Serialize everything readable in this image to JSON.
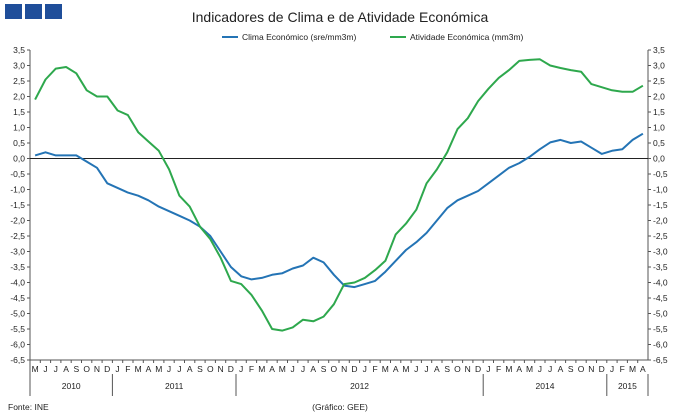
{
  "chart_data": {
    "type": "line",
    "title": "Indicadores de Clima e de Atividade Económica",
    "ylim": [
      -6.5,
      3.5
    ],
    "yticks": [
      "3,5",
      "3,0",
      "2,5",
      "2,0",
      "1,5",
      "1,0",
      "0,5",
      "0,0",
      "-0,5",
      "-1,0",
      "-1,5",
      "-2,0",
      "-2,5",
      "-3,0",
      "-3,5",
      "-4,0",
      "-4,5",
      "-5,0",
      "-5,5",
      "-6,0",
      "-6,5"
    ],
    "months": [
      "M",
      "J",
      "J",
      "A",
      "S",
      "O",
      "N",
      "D",
      "J",
      "F",
      "M",
      "A",
      "M",
      "J",
      "J",
      "A",
      "S",
      "O",
      "N",
      "D",
      "J",
      "F",
      "M",
      "A",
      "M",
      "J",
      "J",
      "A",
      "S",
      "O",
      "N",
      "D",
      "J",
      "F",
      "M",
      "A",
      "M",
      "J",
      "J",
      "A",
      "S",
      "O",
      "N",
      "D",
      "J",
      "F",
      "M",
      "A",
      "M",
      "J",
      "J",
      "A",
      "S",
      "O",
      "N",
      "D",
      "J",
      "F",
      "M",
      "A"
    ],
    "years": [
      {
        "label": "2010",
        "start": 0,
        "end": 7
      },
      {
        "label": "2011",
        "start": 8,
        "end": 19
      },
      {
        "label": "2012",
        "start": 20,
        "end": 43
      },
      {
        "label": "2014",
        "start": 44,
        "end": 55
      },
      {
        "label": "2015",
        "start": 56,
        "end": 59
      }
    ],
    "series": [
      {
        "name": "Clima Económico (sre/mm3m)",
        "color": "#2474b5",
        "values": [
          0.1,
          0.2,
          0.1,
          0.1,
          0.1,
          -0.1,
          -0.3,
          -0.8,
          -0.95,
          -1.1,
          -1.2,
          -1.35,
          -1.55,
          -1.7,
          -1.85,
          -2.0,
          -2.2,
          -2.5,
          -3.0,
          -3.5,
          -3.8,
          -3.9,
          -3.85,
          -3.75,
          -3.7,
          -3.55,
          -3.45,
          -3.2,
          -3.35,
          -3.75,
          -4.1,
          -4.15,
          -4.05,
          -3.95,
          -3.65,
          -3.3,
          -2.95,
          -2.7,
          -2.4,
          -2.0,
          -1.6,
          -1.35,
          -1.2,
          -1.05,
          -0.8,
          -0.55,
          -0.3,
          -0.15,
          0.05,
          0.3,
          0.52,
          0.6,
          0.5,
          0.55,
          0.35,
          0.15,
          0.25,
          0.3,
          0.6,
          0.8
        ]
      },
      {
        "name": "Atividade Económica (mm3m)",
        "color": "#2ea84d",
        "values": [
          1.9,
          2.55,
          2.9,
          2.95,
          2.75,
          2.2,
          2.0,
          2.0,
          1.55,
          1.4,
          0.85,
          0.55,
          0.25,
          -0.35,
          -1.2,
          -1.55,
          -2.2,
          -2.6,
          -3.2,
          -3.95,
          -4.05,
          -4.4,
          -4.9,
          -5.5,
          -5.55,
          -5.45,
          -5.2,
          -5.25,
          -5.1,
          -4.7,
          -4.05,
          -4.0,
          -3.85,
          -3.6,
          -3.3,
          -2.45,
          -2.1,
          -1.65,
          -0.8,
          -0.35,
          0.2,
          0.95,
          1.3,
          1.85,
          2.25,
          2.6,
          2.85,
          3.15,
          3.18,
          3.2,
          3.0,
          2.92,
          2.85,
          2.8,
          2.4,
          2.3,
          2.2,
          2.15,
          2.15,
          2.35
        ]
      }
    ],
    "footer_left": "Fonte: INE",
    "footer_center": "(Gráfico: GEE)"
  }
}
